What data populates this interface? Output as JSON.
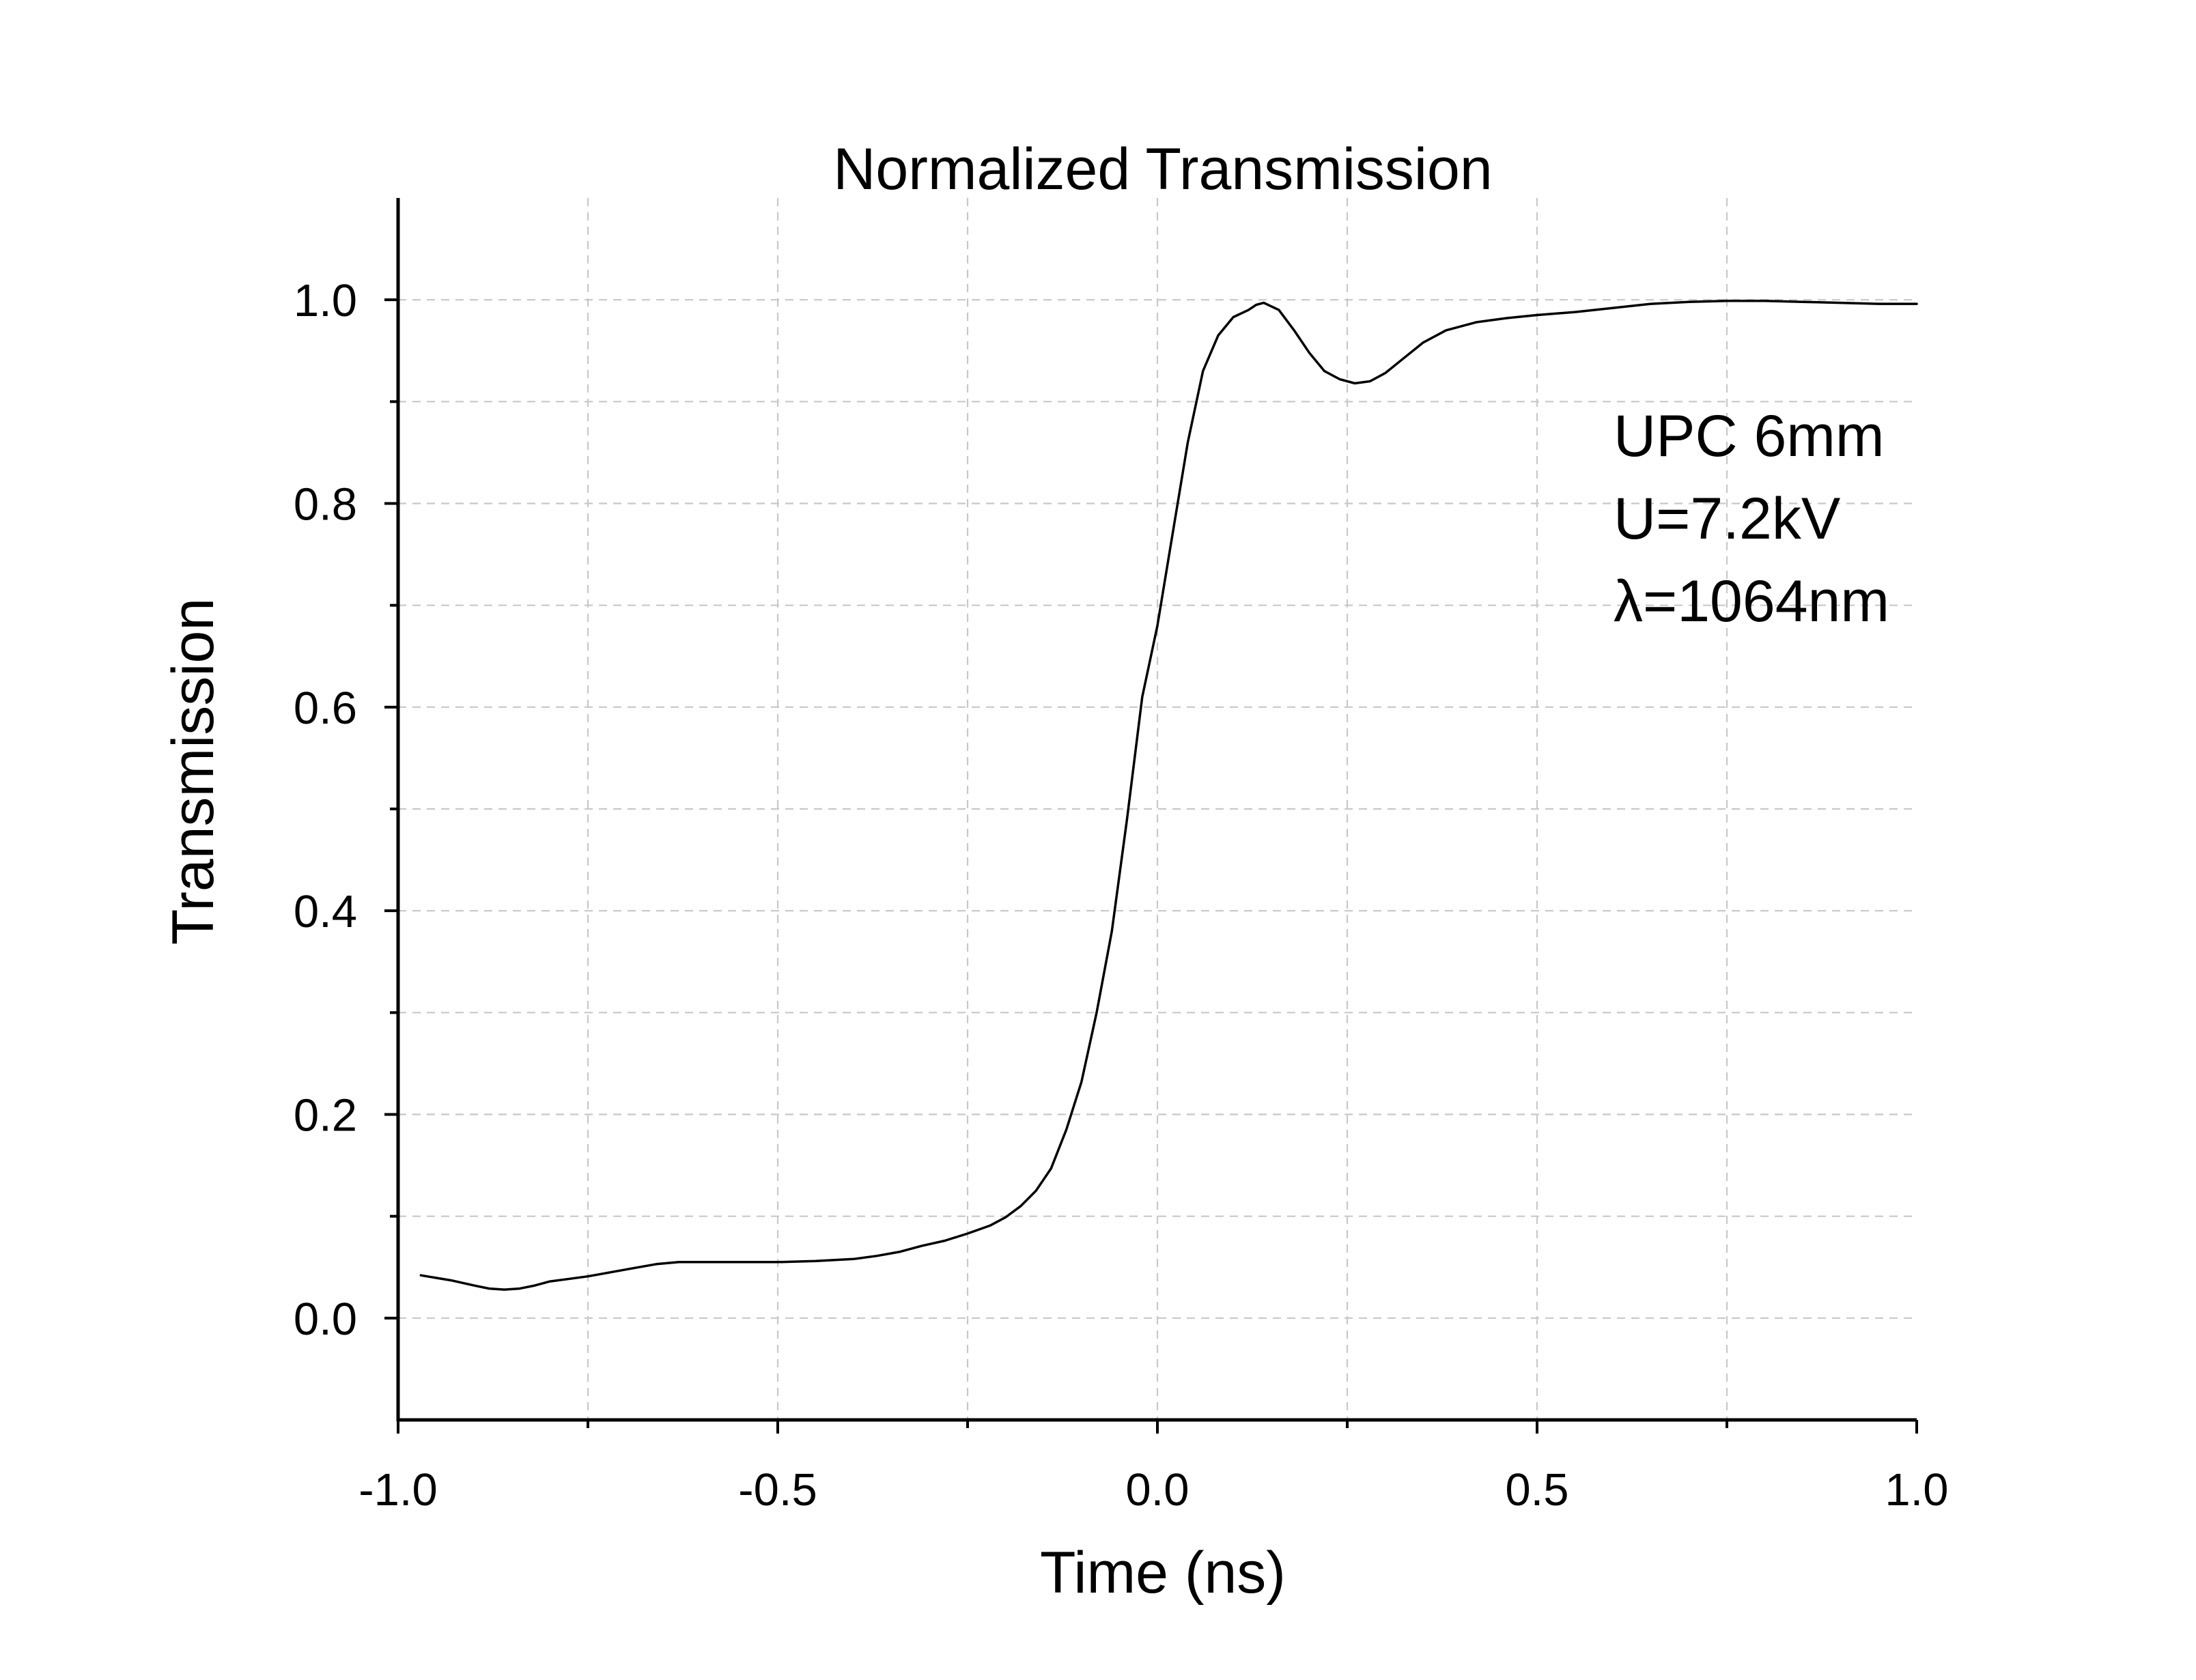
{
  "chart_data": {
    "type": "line",
    "title": "Normalized Transmission",
    "xlabel": "Time (ns)",
    "ylabel": "Transmission",
    "xlim": [
      -1.0,
      1.0
    ],
    "ylim": [
      -0.1,
      1.1
    ],
    "xticks": [
      -1.0,
      -0.5,
      0.0,
      0.5,
      1.0
    ],
    "xtick_labels": [
      "-1.0",
      "-0.5",
      "0.0",
      "0.5",
      "1.0"
    ],
    "xminor": [
      -0.75,
      -0.25,
      0.25,
      0.75
    ],
    "yticks": [
      0.0,
      0.2,
      0.4,
      0.6,
      0.8,
      1.0
    ],
    "ytick_labels": [
      "0.0",
      "0.2",
      "0.4",
      "0.6",
      "0.8",
      "1.0"
    ],
    "yminor": [
      0.1,
      0.3,
      0.5,
      0.7,
      0.9
    ],
    "grid": true,
    "annotations": [
      "UPC 6mm",
      "U=7.2kV",
      "λ=1064nm"
    ],
    "series": [
      {
        "x": [
          -0.97,
          -0.93,
          -0.9,
          -0.88,
          -0.86,
          -0.84,
          -0.82,
          -0.8,
          -0.78,
          -0.75,
          -0.72,
          -0.69,
          -0.66,
          -0.63,
          -0.6,
          -0.55,
          -0.5,
          -0.45,
          -0.4,
          -0.37,
          -0.34,
          -0.31,
          -0.28,
          -0.25,
          -0.22,
          -0.2,
          -0.18,
          -0.16,
          -0.14,
          -0.12,
          -0.1,
          -0.08,
          -0.06,
          -0.04,
          -0.02,
          0.0,
          0.02,
          0.04,
          0.06,
          0.08,
          0.1,
          0.12,
          0.13,
          0.14,
          0.16,
          0.18,
          0.2,
          0.22,
          0.24,
          0.26,
          0.28,
          0.3,
          0.32,
          0.35,
          0.38,
          0.42,
          0.46,
          0.5,
          0.55,
          0.6,
          0.65,
          0.7,
          0.75,
          0.8,
          0.85,
          0.9,
          0.95,
          1.0
        ],
        "values": [
          0.042,
          0.037,
          0.032,
          0.029,
          0.028,
          0.029,
          0.032,
          0.036,
          0.038,
          0.041,
          0.045,
          0.049,
          0.053,
          0.055,
          0.055,
          0.055,
          0.055,
          0.056,
          0.058,
          0.061,
          0.065,
          0.071,
          0.076,
          0.083,
          0.091,
          0.099,
          0.11,
          0.125,
          0.147,
          0.185,
          0.232,
          0.3,
          0.38,
          0.49,
          0.61,
          0.68,
          0.77,
          0.86,
          0.93,
          0.965,
          0.983,
          0.99,
          0.995,
          0.997,
          0.99,
          0.97,
          0.948,
          0.93,
          0.922,
          0.918,
          0.92,
          0.928,
          0.94,
          0.958,
          0.97,
          0.978,
          0.982,
          0.985,
          0.988,
          0.992,
          0.996,
          0.998,
          0.999,
          0.999,
          0.998,
          0.997,
          0.996,
          0.996
        ]
      }
    ]
  }
}
